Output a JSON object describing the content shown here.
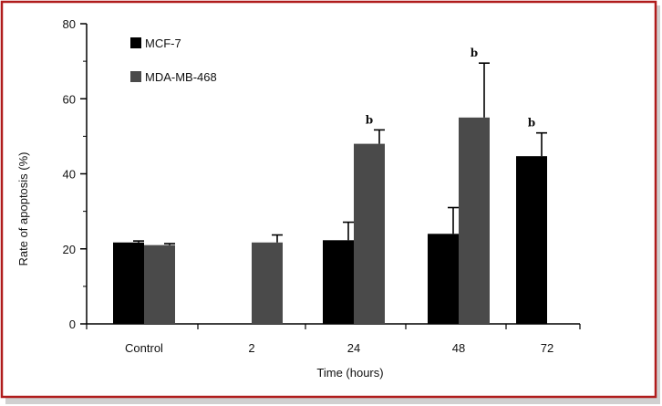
{
  "chart_data": {
    "type": "bar",
    "title": "",
    "xlabel": "Time (hours)",
    "ylabel": "Rate of apoptosis (%)",
    "ylim": [
      0,
      80
    ],
    "yticks": [
      "0",
      "20",
      "40",
      "60",
      "80"
    ],
    "categories": [
      "Control",
      "2",
      "24",
      "48",
      "72"
    ],
    "series": [
      {
        "name": "MCF-7",
        "color": "#000000",
        "values": [
          21.7,
          null,
          22.3,
          24.0,
          44.7
        ],
        "errors": [
          0.4,
          null,
          4.8,
          7.0,
          6.2
        ],
        "sig": [
          "",
          "",
          "",
          "",
          "b"
        ]
      },
      {
        "name": "MDA-MB-468",
        "color": "#4a4a4a",
        "values": [
          21.0,
          21.7,
          48.0,
          55.0,
          null
        ],
        "errors": [
          0.4,
          2.0,
          3.7,
          14.5,
          null
        ],
        "sig": [
          "",
          "",
          "b",
          "b",
          ""
        ]
      }
    ],
    "legend_position": "top-left",
    "frame_color": "#b01c1c"
  }
}
